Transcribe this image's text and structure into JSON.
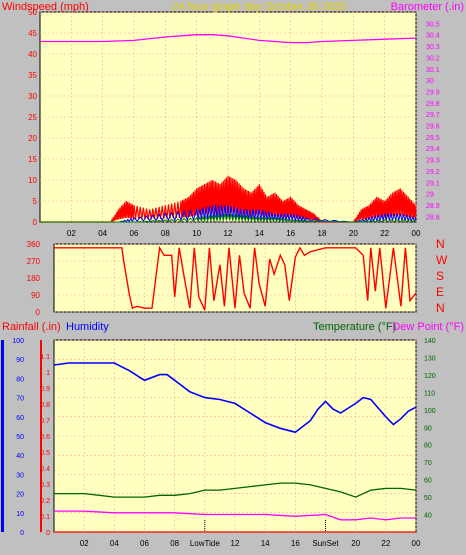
{
  "chart_data": [
    {
      "type": "line",
      "title": "24 hour graph day   October 26 2025",
      "left_axis_label": "Windspeed (mph)",
      "right_axis_label": "Barometer (.in)",
      "colors": {
        "windspeed": "#ff0000",
        "gust": "#0000ff",
        "average": "#008000",
        "barometer": "#ff00ff",
        "title": "#e0d000"
      },
      "ylim_left": [
        0,
        50
      ],
      "ylim_right": [
        28.75,
        30.6
      ],
      "y_ticks_left": [
        "0",
        "5",
        "10",
        "15",
        "20",
        "25",
        "30",
        "35",
        "40",
        "45",
        "50"
      ],
      "y_ticks_right": [
        "28.8",
        "28.9",
        "29",
        "29.1",
        "29.2",
        "29.3",
        "29.4",
        "29.5",
        "29.6",
        "29.7",
        "29.8",
        "29.9",
        "30",
        "30.1",
        "30.2",
        "30.3",
        "30.4",
        "30.5"
      ],
      "x_ticks": [
        "02",
        "04",
        "06",
        "08",
        "10",
        "12",
        "14",
        "16",
        "18",
        "20",
        "22",
        "00"
      ],
      "xlim_hours": [
        0,
        24
      ],
      "series": [
        {
          "key": "barometer",
          "x": [
            0,
            2,
            4,
            6,
            8,
            10,
            11,
            12,
            13,
            14,
            16,
            17,
            18,
            20,
            22,
            24
          ],
          "values": [
            30.34,
            30.34,
            30.34,
            30.35,
            30.38,
            30.4,
            30.4,
            30.39,
            30.37,
            30.35,
            30.33,
            30.33,
            30.34,
            30.35,
            30.36,
            30.37
          ]
        },
        {
          "key": "windspeed",
          "x": [
            0,
            4.5,
            5,
            5.5,
            6,
            7,
            8,
            9,
            9.5,
            10,
            10.5,
            11,
            11.5,
            12,
            12.5,
            13,
            13.5,
            14,
            14.5,
            15,
            15.5,
            16,
            16.5,
            17,
            17.5,
            18,
            19,
            20,
            20.5,
            21,
            21.5,
            22,
            22.5,
            23,
            23.5,
            24
          ],
          "values": [
            0,
            0,
            3,
            5,
            4,
            3,
            4,
            5,
            6,
            8,
            9,
            10,
            9,
            11,
            10,
            8,
            7,
            9,
            6,
            7,
            5,
            6,
            4,
            3,
            2,
            0,
            0,
            0,
            3,
            4,
            6,
            5,
            7,
            8,
            6,
            4
          ]
        },
        {
          "key": "gust",
          "x": [
            0,
            5,
            6,
            8,
            10,
            11,
            12,
            13,
            14,
            15,
            16,
            17,
            20,
            21,
            22,
            23,
            24
          ],
          "values": [
            0,
            0,
            1,
            2,
            3,
            4,
            4,
            3,
            3,
            2,
            2,
            1,
            0,
            1,
            2,
            2,
            1
          ]
        },
        {
          "key": "average",
          "x": [
            0,
            6,
            8,
            10,
            11,
            12,
            13,
            14,
            15,
            16,
            17,
            20,
            22,
            24
          ],
          "values": [
            0,
            0,
            0.5,
            1,
            1.5,
            2,
            1.5,
            1,
            1,
            0.5,
            0.3,
            0,
            0.5,
            0.5
          ]
        }
      ]
    },
    {
      "type": "line",
      "series_name": "Wind Direction",
      "direction_labels": [
        "N",
        "W",
        "S",
        "E",
        "N"
      ],
      "y_ticks": [
        "0",
        "90",
        "180",
        "270",
        "360"
      ],
      "ylim": [
        0,
        360
      ],
      "color": "#ff0000",
      "x": [
        0,
        4.5,
        4.6,
        5,
        5.2,
        5.5,
        6,
        6.5,
        7,
        7.3,
        7.8,
        8,
        8.3,
        8.6,
        9,
        9.3,
        9.6,
        10,
        10.3,
        10.6,
        11,
        11.3,
        11.6,
        12,
        12.3,
        12.6,
        13,
        13.3,
        13.6,
        14,
        14.3,
        14.6,
        15,
        15.3,
        15.6,
        16,
        16.3,
        16.6,
        17,
        18,
        19,
        20,
        20.5,
        20.8,
        21,
        21.3,
        21.6,
        22,
        22.5,
        23,
        23.3,
        23.6,
        24
      ],
      "values": [
        340,
        340,
        280,
        90,
        20,
        30,
        20,
        20,
        340,
        300,
        300,
        80,
        340,
        200,
        20,
        340,
        80,
        10,
        340,
        60,
        250,
        30,
        340,
        20,
        300,
        100,
        20,
        340,
        150,
        30,
        280,
        200,
        300,
        250,
        60,
        290,
        340,
        300,
        320,
        340,
        340,
        340,
        300,
        60,
        340,
        110,
        340,
        20,
        340,
        30,
        340,
        60,
        100
      ]
    },
    {
      "type": "line",
      "labels": {
        "rainfall": "Rainfall (.in)",
        "humidity": "Humidity",
        "temperature": "Temperature (°F)",
        "dewpoint": "Dew Point (°F)"
      },
      "colors": {
        "rainfall": "#ff0000",
        "humidity": "#0000ff",
        "temperature": "#006400",
        "dewpoint": "#ff00ff"
      },
      "y_ticks_humidity": [
        "0",
        "10",
        "20",
        "30",
        "40",
        "50",
        "60",
        "70",
        "80",
        "90",
        "100"
      ],
      "y_ticks_rainfall": [
        "0",
        "0.1",
        "0.2",
        "0.3",
        "0.4",
        "0.5",
        "0.6",
        "0.7",
        "0.8",
        "0.9",
        "1",
        "1.1"
      ],
      "y_ticks_temperature": [
        "40",
        "50",
        "60",
        "70",
        "80",
        "90",
        "100",
        "110",
        "120",
        "130",
        "140"
      ],
      "x_ticks": [
        "02",
        "04",
        "06",
        "08",
        "LowTide",
        "12",
        "14",
        "16",
        "SunSet",
        "20",
        "22",
        "00"
      ],
      "x_ticks_hours": [
        2,
        4,
        6,
        8,
        10,
        12,
        14,
        16,
        18,
        20,
        22,
        24
      ],
      "xlim_hours": [
        0,
        24
      ],
      "humidity_range": [
        0,
        100
      ],
      "temperature_range": [
        30,
        140
      ],
      "events": [
        {
          "label": "LowTide",
          "hour": 10
        },
        {
          "label": "SunSet",
          "hour": 18
        }
      ],
      "series": [
        {
          "key": "humidity",
          "x": [
            0,
            1,
            2,
            3,
            4,
            5,
            6,
            7,
            7.5,
            8,
            9,
            10,
            11,
            12,
            13,
            14,
            15,
            16,
            17,
            17.5,
            18,
            18.5,
            19,
            20,
            20.5,
            21,
            22,
            22.5,
            23,
            23.5,
            24
          ],
          "values": [
            87,
            88,
            88,
            88,
            88,
            84,
            79,
            82,
            82,
            79,
            73,
            70,
            69,
            67,
            62,
            57,
            54,
            52,
            58,
            64,
            68,
            64,
            62,
            67,
            70,
            69,
            60,
            56,
            59,
            63,
            65
          ]
        },
        {
          "key": "temperature",
          "x": [
            0,
            1,
            2,
            3,
            4,
            5,
            6,
            7,
            8,
            9,
            10,
            11,
            12,
            13,
            14,
            15,
            16,
            17,
            18,
            19,
            20,
            21,
            22,
            23,
            24
          ],
          "values": [
            52,
            52,
            52,
            51,
            50,
            50,
            50,
            51,
            51,
            52,
            54,
            54,
            55,
            56,
            57,
            58,
            58,
            57,
            55,
            53,
            50,
            54,
            55,
            55,
            54
          ]
        },
        {
          "key": "dewpoint",
          "x": [
            0,
            2,
            4,
            6,
            8,
            10,
            12,
            14,
            16,
            18,
            19,
            20,
            21,
            22,
            23,
            24
          ],
          "values": [
            42,
            42,
            41,
            41,
            41,
            40,
            40,
            40,
            39,
            40,
            37,
            37,
            38,
            37,
            38,
            38
          ]
        },
        {
          "key": "rainfall",
          "x": [
            0,
            24
          ],
          "values": [
            0,
            0
          ]
        }
      ]
    }
  ]
}
